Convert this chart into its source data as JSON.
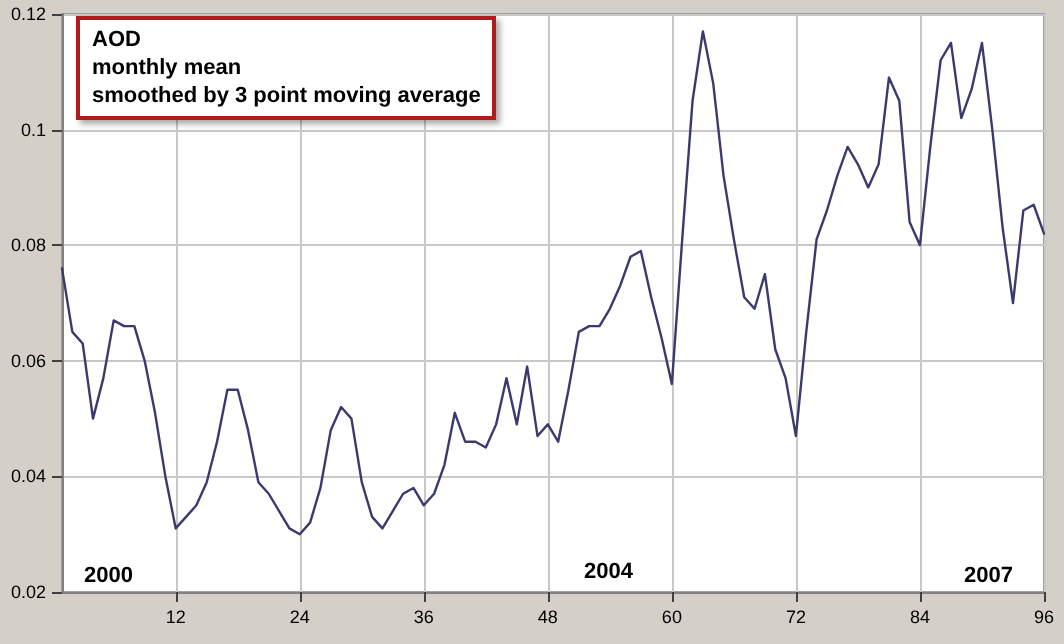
{
  "chart_data": {
    "type": "line",
    "title": "AOD",
    "subtitle": "monthly mean",
    "annotations": [
      "smoothed by 3 point moving average",
      "2000",
      "2004",
      "2007"
    ],
    "x": [
      1,
      2,
      3,
      4,
      5,
      6,
      7,
      8,
      9,
      10,
      11,
      12,
      13,
      14,
      15,
      16,
      17,
      18,
      19,
      20,
      21,
      22,
      23,
      24,
      25,
      26,
      27,
      28,
      29,
      30,
      31,
      32,
      33,
      34,
      35,
      36,
      37,
      38,
      39,
      40,
      41,
      42,
      43,
      44,
      45,
      46,
      47,
      48,
      49,
      50,
      51,
      52,
      53,
      54,
      55,
      56,
      57,
      58,
      59,
      60,
      61,
      62,
      63,
      64,
      65,
      66,
      67,
      68,
      69,
      70,
      71,
      72,
      73,
      74,
      75,
      76,
      77,
      78,
      79,
      80,
      81,
      82,
      83,
      84,
      85,
      86,
      87,
      88,
      89,
      90,
      91,
      92,
      93,
      94,
      95,
      96
    ],
    "series": [
      {
        "color": "#3a3a6e",
        "values": [
          0.076,
          0.065,
          0.063,
          0.05,
          0.057,
          0.067,
          0.066,
          0.066,
          0.06,
          0.051,
          0.04,
          0.031,
          0.033,
          0.035,
          0.039,
          0.046,
          0.055,
          0.055,
          0.048,
          0.039,
          0.037,
          0.034,
          0.031,
          0.03,
          0.032,
          0.038,
          0.048,
          0.052,
          0.05,
          0.039,
          0.033,
          0.031,
          0.034,
          0.037,
          0.038,
          0.035,
          0.037,
          0.042,
          0.051,
          0.046,
          0.046,
          0.045,
          0.049,
          0.057,
          0.049,
          0.059,
          0.047,
          0.049,
          0.046,
          0.055,
          0.065,
          0.066,
          0.066,
          0.069,
          0.073,
          0.078,
          0.079,
          0.071,
          0.064,
          0.056,
          0.081,
          0.105,
          0.117,
          0.108,
          0.092,
          0.081,
          0.071,
          0.069,
          0.075,
          0.062,
          0.057,
          0.047,
          0.065,
          0.081,
          0.086,
          0.092,
          0.097,
          0.094,
          0.09,
          0.094,
          0.109,
          0.105,
          0.084,
          0.08,
          0.097,
          0.112,
          0.115,
          0.102,
          0.107,
          0.115,
          0.1,
          0.083,
          0.07,
          0.086,
          0.087,
          0.082
        ]
      }
    ],
    "xlim": [
      1,
      96
    ],
    "xticks": [
      12,
      24,
      36,
      48,
      60,
      72,
      84,
      96
    ],
    "ylim": [
      0.02,
      0.12
    ],
    "yticks": [
      0.02,
      0.04,
      0.06,
      0.08,
      0.1,
      0.12
    ],
    "grid": true,
    "marker": "none",
    "line_style": "solid"
  }
}
